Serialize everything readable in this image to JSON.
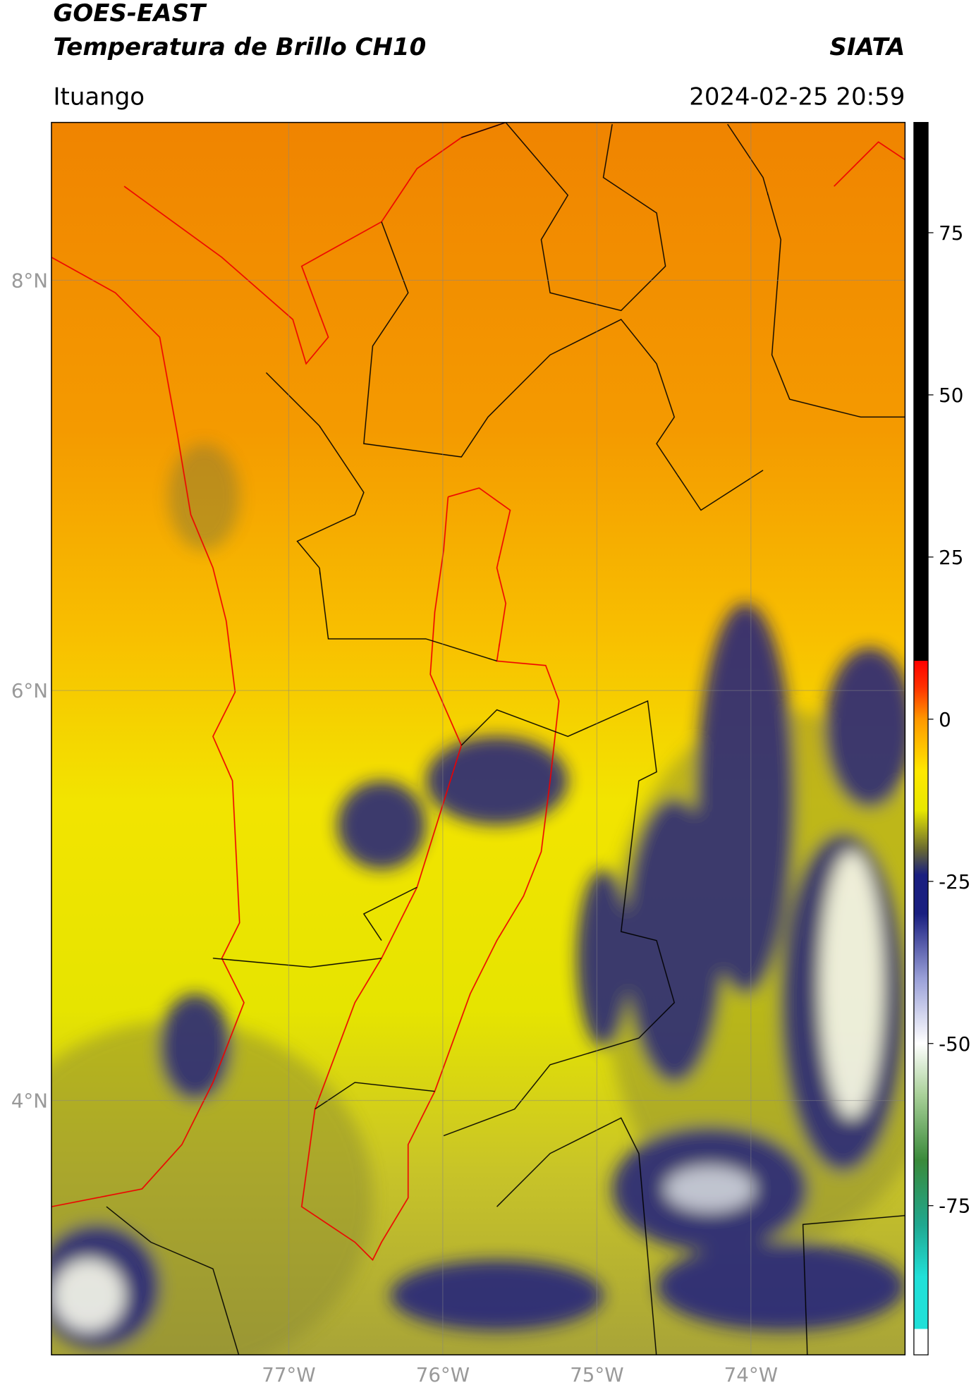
{
  "header": {
    "title": "GOES-EAST",
    "subtitle": "Temperatura de Brillo CH10",
    "agency": "SIATA",
    "region": "Ituango",
    "datetime": "2024-02-25 20:59"
  },
  "map": {
    "lonlim": [
      -78.54,
      -73.0
    ],
    "latlim": [
      2.76,
      8.77
    ],
    "grid": true,
    "lat_ticks": [
      {
        "value": 8,
        "label": "8°N"
      },
      {
        "value": 6,
        "label": "6°N"
      },
      {
        "value": 4,
        "label": "4°N"
      }
    ],
    "lon_ticks": [
      {
        "value": -77,
        "label": "77°W"
      },
      {
        "value": -76,
        "label": "76°W"
      },
      {
        "value": -75,
        "label": "75°W"
      },
      {
        "value": -74,
        "label": "74°W"
      }
    ]
  },
  "colorbar": {
    "lim": [
      -98,
      92
    ],
    "ticks": [
      75,
      50,
      25,
      0,
      -25,
      -50,
      -75
    ],
    "stops": [
      {
        "value": -98,
        "color": "#ffffff"
      },
      {
        "value": -94,
        "color": "#ffffff"
      },
      {
        "value": -94,
        "color": "#20e0d8"
      },
      {
        "value": -86,
        "color": "#20e0d8"
      },
      {
        "value": -78,
        "color": "#20a890"
      },
      {
        "value": -68,
        "color": "#3a8a3a"
      },
      {
        "value": -58,
        "color": "#a8d098"
      },
      {
        "value": -50,
        "color": "#ffffff"
      },
      {
        "value": -40,
        "color": "#9aa0d8"
      },
      {
        "value": -30,
        "color": "#1a1f80"
      },
      {
        "value": -24,
        "color": "#1a1f80"
      },
      {
        "value": -20,
        "color": "#6a6a30"
      },
      {
        "value": -14,
        "color": "#e8e800"
      },
      {
        "value": -8,
        "color": "#ffe800"
      },
      {
        "value": 0,
        "color": "#ff9800"
      },
      {
        "value": 5,
        "color": "#ff3000"
      },
      {
        "value": 9,
        "color": "#ff0000"
      },
      {
        "value": 9,
        "color": "#000000"
      },
      {
        "value": 92,
        "color": "#000000"
      }
    ]
  }
}
